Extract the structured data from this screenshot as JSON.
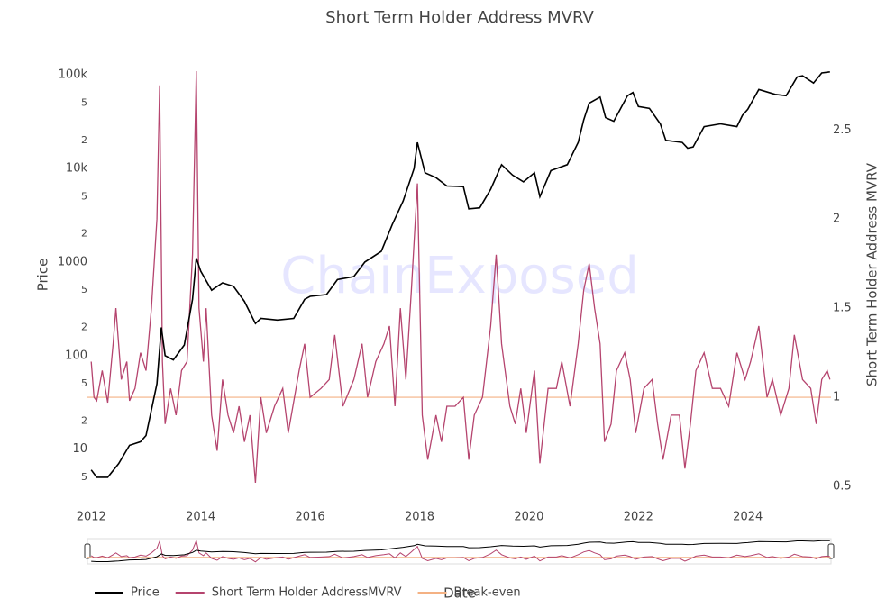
{
  "chart_data": {
    "type": "line",
    "title": "Short Term Holder Address MVRV",
    "watermark": "ChainExposed",
    "xlabel": "Date",
    "ylabel": "Price",
    "y2label": "Short Term Holder Address MVRV",
    "xlim": [
      2011.93,
      2025.52
    ],
    "xticks": [
      2012,
      2014,
      2016,
      2018,
      2020,
      2022,
      2024
    ],
    "ylim": [
      4,
      120000
    ],
    "log_y": true,
    "yticks": [
      {
        "value": 100000,
        "label": "100k"
      },
      {
        "value": 50000,
        "label": "5"
      },
      {
        "value": 20000,
        "label": "2"
      },
      {
        "value": 10000,
        "label": "10k"
      },
      {
        "value": 5000,
        "label": "5"
      },
      {
        "value": 2000,
        "label": "2"
      },
      1000,
      {
        "value": 500,
        "label": "5"
      },
      {
        "value": 200,
        "label": "2"
      },
      100,
      {
        "value": 50,
        "label": "5"
      },
      {
        "value": 20,
        "label": "2"
      },
      10,
      {
        "value": 5,
        "label": "5"
      }
    ],
    "y2lim": [
      0.5,
      2.85
    ],
    "y2ticks": [
      0.5,
      1,
      1.5,
      2,
      2.5
    ],
    "series": [
      {
        "name": "Price",
        "color": "#000000",
        "axis": "y",
        "x": [
          2012.0,
          2012.1,
          2012.3,
          2012.5,
          2012.7,
          2012.9,
          2013.0,
          2013.2,
          2013.28,
          2013.35,
          2013.5,
          2013.7,
          2013.85,
          2013.92,
          2014.0,
          2014.2,
          2014.4,
          2014.6,
          2014.8,
          2015.0,
          2015.1,
          2015.4,
          2015.7,
          2015.9,
          2016.0,
          2016.3,
          2016.5,
          2016.8,
          2017.0,
          2017.3,
          2017.5,
          2017.7,
          2017.9,
          2017.96,
          2018.1,
          2018.3,
          2018.5,
          2018.8,
          2018.9,
          2019.1,
          2019.3,
          2019.5,
          2019.7,
          2019.9,
          2020.1,
          2020.2,
          2020.4,
          2020.7,
          2020.9,
          2021.0,
          2021.1,
          2021.3,
          2021.4,
          2021.55,
          2021.8,
          2021.9,
          2022.0,
          2022.2,
          2022.4,
          2022.5,
          2022.8,
          2022.9,
          2023.0,
          2023.2,
          2023.5,
          2023.8,
          2023.9,
          2024.0,
          2024.2,
          2024.5,
          2024.7,
          2024.9,
          2025.0,
          2025.2,
          2025.35,
          2025.5
        ],
        "values": [
          6,
          5,
          5,
          7,
          11,
          12,
          14,
          50,
          200,
          100,
          90,
          130,
          400,
          1100,
          800,
          500,
          600,
          550,
          380,
          220,
          250,
          240,
          250,
          400,
          430,
          450,
          650,
          700,
          1000,
          1300,
          2500,
          4500,
          10000,
          19000,
          9000,
          8000,
          6500,
          6400,
          3700,
          3800,
          6000,
          11000,
          8500,
          7200,
          9000,
          5000,
          9500,
          11000,
          19000,
          33000,
          50000,
          58000,
          35000,
          32000,
          60000,
          65000,
          46000,
          44000,
          30000,
          20000,
          19000,
          16500,
          17000,
          28000,
          30000,
          28000,
          37000,
          43000,
          70000,
          62000,
          60000,
          95000,
          98000,
          82000,
          105000,
          108000
        ]
      },
      {
        "name": "Short Term Holder AddressMVRV",
        "color": "#b5446e",
        "axis": "y2",
        "x": [
          2012.0,
          2012.05,
          2012.1,
          2012.2,
          2012.3,
          2012.4,
          2012.45,
          2012.55,
          2012.65,
          2012.7,
          2012.8,
          2012.9,
          2013.0,
          2013.1,
          2013.2,
          2013.25,
          2013.3,
          2013.35,
          2013.45,
          2013.55,
          2013.65,
          2013.75,
          2013.85,
          2013.92,
          2013.97,
          2014.05,
          2014.1,
          2014.2,
          2014.3,
          2014.4,
          2014.5,
          2014.6,
          2014.7,
          2014.8,
          2014.9,
          2015.0,
          2015.1,
          2015.2,
          2015.35,
          2015.5,
          2015.6,
          2015.8,
          2015.9,
          2016.0,
          2016.2,
          2016.35,
          2016.45,
          2016.6,
          2016.8,
          2016.95,
          2017.05,
          2017.2,
          2017.35,
          2017.45,
          2017.55,
          2017.65,
          2017.75,
          2017.85,
          2017.96,
          2018.05,
          2018.15,
          2018.3,
          2018.4,
          2018.5,
          2018.65,
          2018.8,
          2018.9,
          2019.0,
          2019.15,
          2019.3,
          2019.4,
          2019.5,
          2019.65,
          2019.75,
          2019.85,
          2019.95,
          2020.1,
          2020.2,
          2020.35,
          2020.5,
          2020.6,
          2020.75,
          2020.9,
          2021.0,
          2021.1,
          2021.2,
          2021.3,
          2021.38,
          2021.5,
          2021.6,
          2021.75,
          2021.85,
          2021.95,
          2022.1,
          2022.25,
          2022.35,
          2022.45,
          2022.6,
          2022.75,
          2022.85,
          2022.95,
          2023.05,
          2023.2,
          2023.35,
          2023.5,
          2023.65,
          2023.8,
          2023.95,
          2024.05,
          2024.2,
          2024.35,
          2024.45,
          2024.6,
          2024.75,
          2024.85,
          2025.0,
          2025.15,
          2025.25,
          2025.35,
          2025.45,
          2025.5
        ],
        "values": [
          1.2,
          1.0,
          0.98,
          1.15,
          0.97,
          1.3,
          1.5,
          1.1,
          1.2,
          0.98,
          1.05,
          1.25,
          1.15,
          1.5,
          2.0,
          2.75,
          1.2,
          0.85,
          1.05,
          0.9,
          1.15,
          1.2,
          1.8,
          2.83,
          1.5,
          1.2,
          1.5,
          0.9,
          0.7,
          1.1,
          0.9,
          0.8,
          0.95,
          0.75,
          0.9,
          0.52,
          1.0,
          0.8,
          0.95,
          1.05,
          0.8,
          1.15,
          1.3,
          1.0,
          1.05,
          1.1,
          1.35,
          0.95,
          1.1,
          1.3,
          1.0,
          1.2,
          1.3,
          1.4,
          0.95,
          1.5,
          1.1,
          1.6,
          2.2,
          0.9,
          0.65,
          0.9,
          0.75,
          0.95,
          0.95,
          1.0,
          0.65,
          0.9,
          1.0,
          1.4,
          1.8,
          1.3,
          0.95,
          0.85,
          1.05,
          0.8,
          1.15,
          0.63,
          1.05,
          1.05,
          1.2,
          0.95,
          1.3,
          1.6,
          1.75,
          1.5,
          1.3,
          0.75,
          0.85,
          1.15,
          1.25,
          1.1,
          0.8,
          1.05,
          1.1,
          0.85,
          0.65,
          0.9,
          0.9,
          0.6,
          0.85,
          1.15,
          1.25,
          1.05,
          1.05,
          0.95,
          1.25,
          1.1,
          1.2,
          1.4,
          1.0,
          1.1,
          0.9,
          1.05,
          1.35,
          1.1,
          1.05,
          0.85,
          1.1,
          1.15,
          1.1
        ]
      }
    ],
    "break_even": {
      "name": "Break-even",
      "value": 1,
      "color": "#f4b183",
      "axis": "y2"
    }
  }
}
